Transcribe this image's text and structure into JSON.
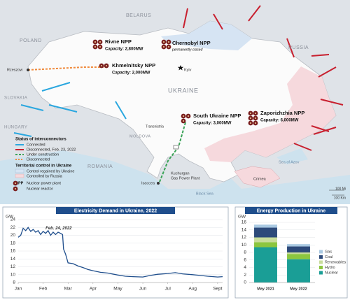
{
  "map": {
    "countries": [
      "BELARUS",
      "POLAND",
      "RUSSIA",
      "UKRAINE",
      "SLOVAKIA",
      "HUNGARY",
      "MOLDOVA",
      "ROMANIA"
    ],
    "regions": [
      "Transnistria",
      "Crimea"
    ],
    "seas": [
      "Sea of Azov",
      "Black Sea"
    ],
    "cities": [
      "Rzeszow",
      "Kyiv",
      "Isaccea",
      "Kuchurgan",
      "Gas Power Plant"
    ],
    "plants": [
      {
        "name": "Rivne NPP",
        "capacity": "Capacity: 2,800MW"
      },
      {
        "name": "Chernobyl NPP",
        "capacity": "permanently closed"
      },
      {
        "name": "Khmelnitsky NPP",
        "capacity": "Capacity: 2,000MW"
      },
      {
        "name": "South Ukraine NPP",
        "capacity": "Capacity: 3,000MW"
      },
      {
        "name": "Zaporizhzhia  NPP",
        "capacity": "Capacity: 6,000MW"
      }
    ],
    "legend": {
      "interconnectors_title": "Status of interconnectors",
      "interconnectors": [
        "Connected",
        "Disconnected, Feb. 23, 2022",
        "Under construction",
        "Disconnected"
      ],
      "territory_title": "Territorial control in Ukraine",
      "territory": [
        "Control regained by Ukraine",
        "Controlled by Russia"
      ],
      "npp_abbr": "NPP",
      "npp": "Nuclear power plant",
      "reactor": "Nuclear reactor"
    },
    "scale": [
      "100 Mi",
      "100 Km"
    ]
  },
  "chart_data": [
    {
      "type": "line",
      "title": "Electricity Demand in Ukraine, 2022",
      "y_label": "GW",
      "annotation": "Feb. 24, 2022",
      "x": [
        1.0,
        1.1,
        1.2,
        1.3,
        1.4,
        1.5,
        1.6,
        1.7,
        1.8,
        1.9,
        2.0,
        2.1,
        2.2,
        2.3,
        2.4,
        2.5,
        2.6,
        2.7,
        2.78,
        2.82,
        2.9,
        3.0,
        3.2,
        3.4,
        3.6,
        3.8,
        4.0,
        4.3,
        4.6,
        5.0,
        5.3,
        5.6,
        6.0,
        6.3,
        6.6,
        7.0,
        7.3,
        7.6,
        8.0,
        8.3,
        8.6,
        9.0,
        9.2
      ],
      "series": [
        {
          "name": "Electricity demand",
          "color": "#1f4e8c",
          "values": [
            19.5,
            20,
            21.8,
            21.2,
            22,
            21,
            21.5,
            20.8,
            21.2,
            20.2,
            21,
            20.5,
            21.2,
            20,
            20.8,
            20.2,
            20.8,
            20.5,
            20.2,
            16.5,
            15.2,
            13,
            12.8,
            12.2,
            11.8,
            11.3,
            11,
            10.6,
            10.4,
            9.9,
            9.6,
            9.5,
            9.4,
            9.8,
            10.1,
            10.3,
            10.5,
            10.2,
            10,
            9.8,
            9.6,
            9.4,
            9.5
          ]
        }
      ],
      "xlim": [
        1,
        9.2
      ],
      "xticks": [
        {
          "value": 1,
          "label": "Jan"
        },
        {
          "value": 2,
          "label": "Feb"
        },
        {
          "value": 3,
          "label": "Mar"
        },
        {
          "value": 4,
          "label": "Apr"
        },
        {
          "value": 5,
          "label": "May"
        },
        {
          "value": 6,
          "label": "Jun"
        },
        {
          "value": 7,
          "label": "Jul"
        },
        {
          "value": 8,
          "label": "Aug"
        },
        {
          "value": 9,
          "label": "Sept"
        }
      ],
      "ylim": [
        8,
        24
      ],
      "yticks": [
        8,
        10,
        12,
        14,
        16,
        18,
        20,
        22,
        24
      ],
      "grid": true
    },
    {
      "type": "stacked_bar",
      "title": "Energy Production in Ukraine",
      "y_label": "GW",
      "categories": [
        "May 2021",
        "May 2022"
      ],
      "series": [
        {
          "name": "Nuclear",
          "color": "#1a9e96",
          "values": [
            9.4,
            6.2
          ]
        },
        {
          "name": "Hydro",
          "color": "#8cc63f",
          "values": [
            1.3,
            1.4
          ]
        },
        {
          "name": "Renewables",
          "color": "#c9dd9c",
          "values": [
            1.3,
            0.4
          ]
        },
        {
          "name": "Coal",
          "color": "#2d4a7a",
          "values": [
            2.6,
            1.6
          ]
        },
        {
          "name": "Gas",
          "color": "#a9c9e2",
          "values": [
            0.8,
            0.6
          ]
        }
      ],
      "ylim": [
        0,
        16
      ],
      "yticks": [
        0,
        2,
        4,
        6,
        8,
        10,
        12,
        14,
        16
      ],
      "grid": true
    }
  ]
}
